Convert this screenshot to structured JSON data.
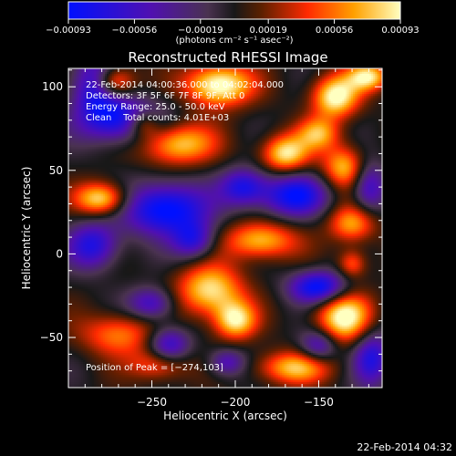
{
  "chart_data": {
    "type": "heatmap",
    "title": "Reconstructed RHESSI Image",
    "xlabel": "Heliocentric X (arcsec)",
    "ylabel": "Heliocentric Y (arcsec)",
    "xlim": [
      -300,
      -112
    ],
    "ylim": [
      -80,
      111
    ],
    "x_ticks": [
      -250,
      -200,
      -150
    ],
    "x_tick_labels": [
      "−250",
      "−200",
      "−150"
    ],
    "y_ticks": [
      -50,
      0,
      50,
      100
    ],
    "y_tick_labels": [
      "−50",
      "0",
      "50",
      "100"
    ],
    "colorbar": {
      "range": [
        -0.00093,
        0.00093
      ],
      "ticks": [
        -0.00093,
        -0.00056,
        -0.00019,
        0.00019,
        0.00056,
        0.00093
      ],
      "tick_labels": [
        "−0.00093",
        "−0.00056",
        "−0.00019",
        "0.00019",
        "0.00056",
        "0.00093"
      ],
      "unit_label": "(photons cm⁻² s⁻¹ asec⁻²)"
    },
    "annotations": [
      "22-Feb-2014 04:00:36.000 to 04:02:04.000",
      "Detectors: 3F 5F 6F 7F 8F 9F, Att 0",
      "Energy Range: 25.0 - 50.0 keV",
      "Clean    Total counts: 4.01E+03"
    ],
    "peak_label": "Position of Peak = [−274,103]",
    "peak_position": [
      -274,
      103
    ],
    "blobs": [
      {
        "x": -210,
        "y": 101,
        "sx": 14,
        "sy": 9,
        "a": 1.15
      },
      {
        "x": -140,
        "y": 94,
        "sx": 10,
        "sy": 9,
        "a": 1.05
      },
      {
        "x": -274,
        "y": 103,
        "sx": 9,
        "sy": 7,
        "a": 1.1
      },
      {
        "x": -120,
        "y": 106,
        "sx": 9,
        "sy": 6,
        "a": 0.9
      },
      {
        "x": -235,
        "y": 66,
        "sx": 16,
        "sy": 9,
        "a": 0.9
      },
      {
        "x": -170,
        "y": 60,
        "sx": 10,
        "sy": 8,
        "a": 0.95
      },
      {
        "x": -135,
        "y": 52,
        "sx": 9,
        "sy": 9,
        "a": 0.8
      },
      {
        "x": -150,
        "y": 72,
        "sx": 9,
        "sy": 7,
        "a": 0.7
      },
      {
        "x": -280,
        "y": 33,
        "sx": 11,
        "sy": 7,
        "a": 1.0
      },
      {
        "x": -185,
        "y": 8,
        "sx": 15,
        "sy": 8,
        "a": 0.85
      },
      {
        "x": -130,
        "y": 18,
        "sx": 10,
        "sy": 8,
        "a": 0.75
      },
      {
        "x": -215,
        "y": -22,
        "sx": 14,
        "sy": 11,
        "a": 0.95
      },
      {
        "x": -200,
        "y": -40,
        "sx": 9,
        "sy": 8,
        "a": 0.9
      },
      {
        "x": -135,
        "y": -38,
        "sx": 12,
        "sy": 11,
        "a": 1.05
      },
      {
        "x": -270,
        "y": -48,
        "sx": 16,
        "sy": 9,
        "a": 0.65
      },
      {
        "x": -245,
        "y": -66,
        "sx": 12,
        "sy": 7,
        "a": 0.65
      },
      {
        "x": -165,
        "y": -68,
        "sx": 16,
        "sy": 7,
        "a": 0.8
      },
      {
        "x": -255,
        "y": 78,
        "sx": 7,
        "sy": 6,
        "a": 0.65
      },
      {
        "x": -130,
        "y": -6,
        "sx": 6,
        "sy": 6,
        "a": 0.6
      },
      {
        "x": -283,
        "y": 102,
        "sx": 10,
        "sy": 12,
        "a": -1.05
      },
      {
        "x": -268,
        "y": 80,
        "sx": 18,
        "sy": 10,
        "a": -0.95
      },
      {
        "x": -242,
        "y": 27,
        "sx": 18,
        "sy": 11,
        "a": -1.1
      },
      {
        "x": -285,
        "y": 5,
        "sx": 11,
        "sy": 10,
        "a": -0.8
      },
      {
        "x": -225,
        "y": 8,
        "sx": 9,
        "sy": 8,
        "a": -0.7
      },
      {
        "x": -165,
        "y": 35,
        "sx": 14,
        "sy": 9,
        "a": -0.95
      },
      {
        "x": -195,
        "y": 40,
        "sx": 10,
        "sy": 8,
        "a": -0.8
      },
      {
        "x": -240,
        "y": -55,
        "sx": 9,
        "sy": 8,
        "a": -0.8
      },
      {
        "x": -150,
        "y": -20,
        "sx": 12,
        "sy": 7,
        "a": -1.05
      },
      {
        "x": -120,
        "y": 40,
        "sx": 7,
        "sy": 11,
        "a": -0.7
      },
      {
        "x": -150,
        "y": -55,
        "sx": 8,
        "sy": 7,
        "a": -0.7
      },
      {
        "x": -118,
        "y": -62,
        "sx": 8,
        "sy": 12,
        "a": -0.8
      },
      {
        "x": -205,
        "y": -65,
        "sx": 8,
        "sy": 6,
        "a": -0.6
      },
      {
        "x": -250,
        "y": -30,
        "sx": 10,
        "sy": 7,
        "a": -0.7
      }
    ]
  },
  "footer": {
    "date": "22-Feb-2014 04:32"
  }
}
